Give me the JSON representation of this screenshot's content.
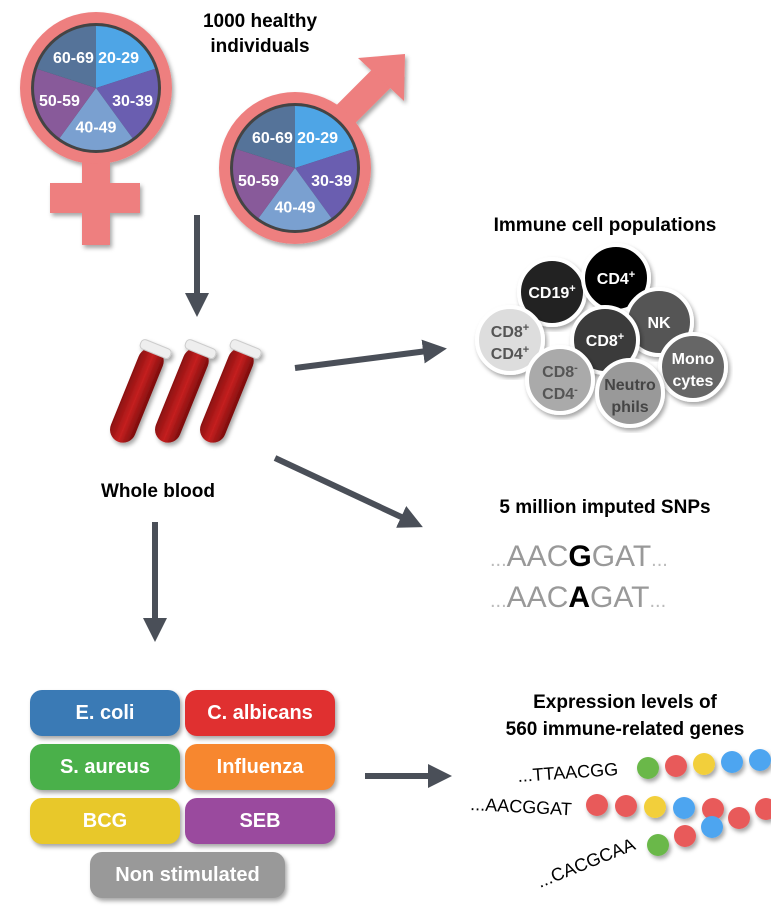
{
  "title": [
    "1000 healthy",
    "individuals"
  ],
  "age_groups": [
    "20-29",
    "30-39",
    "40-49",
    "50-59",
    "60-69"
  ],
  "age_colors": [
    "#4ea5e6",
    "#6a5eb0",
    "#7aa0d0",
    "#885a9a",
    "#557399"
  ],
  "symbol_color": "#ee7f7f",
  "whole_blood": "Whole blood",
  "immune": {
    "title": "Immune cell populations",
    "cells": [
      {
        "label": [
          "CD4",
          "+"
        ],
        "color": "#000000",
        "text": "#ffffff"
      },
      {
        "label": [
          "CD19",
          "+"
        ],
        "color": "#222222",
        "text": "#ffffff"
      },
      {
        "label": [
          "NK",
          ""
        ],
        "color": "#555555",
        "text": "#ffffff"
      },
      {
        "label": [
          "CD8",
          "+"
        ],
        "color": "#3a3a3a",
        "text": "#ffffff"
      },
      {
        "label": [
          "CD8",
          "+",
          "CD4",
          "+"
        ],
        "color": "#dddddd",
        "text": "#555555"
      },
      {
        "label": [
          "Mono",
          "cytes"
        ],
        "color": "#666666",
        "text": "#ffffff"
      },
      {
        "label": [
          "CD8",
          "-",
          "CD4",
          "-"
        ],
        "color": "#aaaaaa",
        "text": "#555555"
      },
      {
        "label": [
          "Neutro",
          "phils"
        ],
        "color": "#999999",
        "text": "#444444"
      }
    ]
  },
  "snps": {
    "title": "5 million imputed SNPs",
    "seq1": [
      "...",
      "AAC",
      "G",
      "GAT",
      "..."
    ],
    "seq2": [
      "...",
      "AAC",
      "A",
      "GAT",
      "..."
    ]
  },
  "stimuli": [
    {
      "label": "E. coli",
      "color": "#3a7ab5"
    },
    {
      "label": "C. albicans",
      "color": "#e03030"
    },
    {
      "label": "S. aureus",
      "color": "#4ab04a"
    },
    {
      "label": "Influenza",
      "color": "#f7872f"
    },
    {
      "label": "BCG",
      "color": "#e8c82a"
    },
    {
      "label": "SEB",
      "color": "#9a4a9e"
    },
    {
      "label": "Non stimulated",
      "color": "#999999"
    }
  ],
  "expression": {
    "title": [
      "Expression levels of",
      "560 immune-related genes"
    ],
    "reads": [
      "...TTAACGG",
      "...AACGGAT",
      "...CACGCAA"
    ],
    "bead_colors": {
      "green": "#6ab84a",
      "red": "#e85a5a",
      "yellow": "#f2cf3a",
      "blue": "#4ea5f0"
    }
  }
}
